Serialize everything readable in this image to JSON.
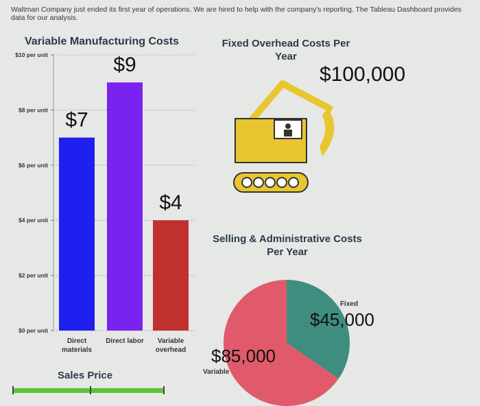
{
  "intro_text": "Waltman Company just ended its first year of operations. We are hired to help with the company's reporting. The Tableau Dashboard provides data for our analysis.",
  "colors": {
    "direct_materials": "#1f1ff0",
    "direct_labor": "#7a22f0",
    "variable_overhead": "#c0302f",
    "pie_variable": "#e05a6b",
    "pie_fixed": "#3f8d7e",
    "excavator": "#e8c630",
    "slider": "#5cc43a"
  },
  "icons": [
    "excavator-icon",
    "worker-icon"
  ],
  "chart_data": [
    {
      "type": "bar",
      "title": "Variable Manufacturing Costs",
      "categories": [
        "Direct materials",
        "Direct labor",
        "Variable overhead"
      ],
      "values": [
        7,
        9,
        4
      ],
      "data_labels": [
        "$7",
        "$9",
        "$4"
      ],
      "y_ticks": [
        0,
        2,
        4,
        6,
        8,
        10
      ],
      "y_tick_labels": [
        "$0 per unit",
        "$2 per unit",
        "$4 per unit",
        "$6 per unit",
        "$8 per unit",
        "$10 per unit"
      ],
      "ylim": [
        0,
        10
      ],
      "grid": true
    },
    {
      "type": "pie",
      "title": "Selling & Administrative Costs Per Year",
      "slices": [
        {
          "name": "Variable",
          "value": 85000,
          "label": "$85,000"
        },
        {
          "name": "Fixed",
          "value": 45000,
          "label": "$45,000"
        }
      ]
    }
  ],
  "fixed_overhead": {
    "title": "Fixed Overhead Costs Per Year",
    "amount": "$100,000"
  },
  "sales_price": {
    "label": "Sales Price",
    "value": null
  }
}
